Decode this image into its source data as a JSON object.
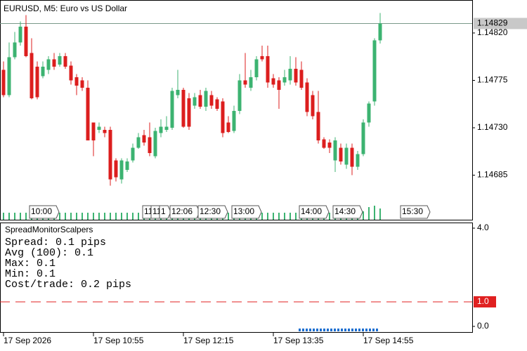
{
  "chart_data": {
    "type": "candlestick",
    "title": "EURUSD, M5:  Euro vs US Dollar",
    "up_color": "#3cb371",
    "down_color": "#dc1e1e",
    "open": [
      1.14785,
      1.14761,
      1.14797,
      1.14811,
      1.14826,
      1.14801,
      1.14788,
      1.14779,
      1.14785,
      1.14795,
      1.1479,
      1.14798,
      1.14789,
      1.14778,
      1.14775,
      1.14768,
      1.14735,
      1.14728,
      1.14728,
      1.14728,
      1.14699,
      1.14681,
      1.1469,
      1.14699,
      1.14711,
      1.14723,
      1.14721,
      1.14703,
      1.14725,
      1.14728,
      1.1473,
      1.14761,
      1.14766,
      1.14758,
      1.14751,
      1.14761,
      1.1475,
      1.14761,
      1.14757,
      1.14755,
      1.14735,
      1.14727,
      1.14746,
      1.14775,
      1.14768,
      1.14778,
      1.14798,
      1.14798,
      1.14777,
      1.14775,
      1.14773,
      1.14775,
      1.14786,
      1.14785,
      1.14773,
      1.14761,
      1.14745,
      1.14719,
      1.14716,
      1.14699,
      1.14711,
      1.14695,
      1.14711,
      1.14693,
      1.14705,
      1.14735,
      1.14755,
      1.14813
    ],
    "high": [
      1.14793,
      1.14811,
      1.14821,
      1.14831,
      1.14837,
      1.14815,
      1.14793,
      1.14793,
      1.14798,
      1.14801,
      1.14801,
      1.14801,
      1.14793,
      1.14781,
      1.14778,
      1.14775,
      1.14735,
      1.14735,
      1.14731,
      1.14731,
      1.14701,
      1.14701,
      1.14701,
      1.14715,
      1.14725,
      1.14728,
      1.14735,
      1.1473,
      1.14738,
      1.14741,
      1.14768,
      1.14785,
      1.14768,
      1.14763,
      1.14763,
      1.14766,
      1.14768,
      1.14765,
      1.14759,
      1.14758,
      1.14741,
      1.14751,
      1.14781,
      1.14801,
      1.14785,
      1.14798,
      1.14808,
      1.14808,
      1.14781,
      1.14778,
      1.14785,
      1.14798,
      1.14797,
      1.14793,
      1.14777,
      1.14765,
      1.14765,
      1.14721,
      1.14719,
      1.14721,
      1.14715,
      1.14715,
      1.14715,
      1.14708,
      1.14738,
      1.14755,
      1.14815,
      1.14839
    ],
    "low": [
      1.14759,
      1.14759,
      1.14795,
      1.14808,
      1.14797,
      1.14757,
      1.14757,
      1.14777,
      1.14781,
      1.14785,
      1.14788,
      1.14786,
      1.14771,
      1.14761,
      1.14765,
      1.14718,
      1.14703,
      1.14725,
      1.14721,
      1.14675,
      1.14679,
      1.14677,
      1.14688,
      1.14697,
      1.1471,
      1.14713,
      1.14703,
      1.14701,
      1.14721,
      1.14726,
      1.14728,
      1.14758,
      1.1473,
      1.14728,
      1.14748,
      1.14748,
      1.14746,
      1.14748,
      1.14746,
      1.14721,
      1.14725,
      1.14725,
      1.14743,
      1.14768,
      1.14765,
      1.14775,
      1.14793,
      1.14768,
      1.14768,
      1.14748,
      1.1477,
      1.14771,
      1.1477,
      1.14766,
      1.14741,
      1.14738,
      1.14715,
      1.1471,
      1.14706,
      1.14688,
      1.14695,
      1.14691,
      1.14685,
      1.1469,
      1.14703,
      1.14731,
      1.14751,
      1.1481
    ],
    "close": [
      1.14761,
      1.14797,
      1.14811,
      1.14826,
      1.14798,
      1.14758,
      1.14759,
      1.14788,
      1.14795,
      1.14788,
      1.14798,
      1.14788,
      1.14775,
      1.1477,
      1.14768,
      1.14718,
      1.14718,
      1.14731,
      1.14725,
      1.14681,
      1.14683,
      1.14699,
      1.14698,
      1.14711,
      1.14721,
      1.14716,
      1.14706,
      1.14727,
      1.14731,
      1.14731,
      1.14765,
      1.14766,
      1.14731,
      1.14731,
      1.14759,
      1.1475,
      1.14765,
      1.14751,
      1.14748,
      1.14725,
      1.14726,
      1.14746,
      1.14775,
      1.14771,
      1.14778,
      1.14795,
      1.14795,
      1.14773,
      1.14771,
      1.14766,
      1.14778,
      1.14786,
      1.14773,
      1.14768,
      1.14745,
      1.14741,
      1.14718,
      1.14711,
      1.14711,
      1.14718,
      1.14698,
      1.14711,
      1.14693,
      1.14705,
      1.14735,
      1.14753,
      1.14813,
      1.14829
    ],
    "volume": [
      10,
      10,
      10,
      10,
      10,
      10,
      10,
      10,
      10,
      10,
      10,
      10,
      10,
      10,
      10,
      10,
      10,
      10,
      10,
      10,
      10,
      10,
      10,
      10,
      10,
      10,
      10,
      10,
      10,
      10,
      10,
      10,
      10,
      10,
      10,
      10,
      10,
      10,
      10,
      10,
      10,
      10,
      10,
      10,
      10,
      10,
      10,
      10,
      10,
      10,
      10,
      10,
      10,
      20,
      16,
      10,
      10,
      10,
      10,
      10,
      10,
      10,
      10,
      10,
      12,
      18,
      20,
      16
    ],
    "ylim": [
      1.146427,
      1.148513
    ],
    "yticks": [
      {
        "value": 1.1482,
        "label": "1.14820"
      },
      1.14775,
      {
        "value": 1.1473,
        "label": "1.14730"
      },
      1.14685
    ],
    "current_price": 1.14829,
    "xlim": [
      -0.625,
      83.375
    ],
    "xticks": [
      {
        "value": 0,
        "label": "17 Sep 2026"
      },
      {
        "value": 16,
        "label": "17 Sep 10:55"
      },
      {
        "value": 32,
        "label": "17 Sep 12:15"
      },
      {
        "value": 48,
        "label": "17 Sep 13:35"
      },
      {
        "value": 64,
        "label": "17 Sep 14:55"
      }
    ],
    "vline_labels": [
      "10:00",
      "11",
      "11",
      "1",
      "12:06",
      "12:30",
      "13:00",
      "14:00",
      "14:30",
      "15:30"
    ],
    "indicator": {
      "name": "SpreadMonitorScalpers",
      "lines": [
        "Spread: 0.1 pips",
        "Avg (100): 0.1",
        "Max: 0.1",
        "Min: 0.1",
        "Cost/trade: 0.2 pips"
      ],
      "ylim": [
        -0.23,
        4.2
      ],
      "yticks": [
        {
          "value": 4,
          "label": "4.0"
        },
        {
          "value": 0,
          "label": "0.0"
        }
      ],
      "level": {
        "value": 1,
        "label": "1.0"
      },
      "level_color": "#e02020"
    }
  }
}
